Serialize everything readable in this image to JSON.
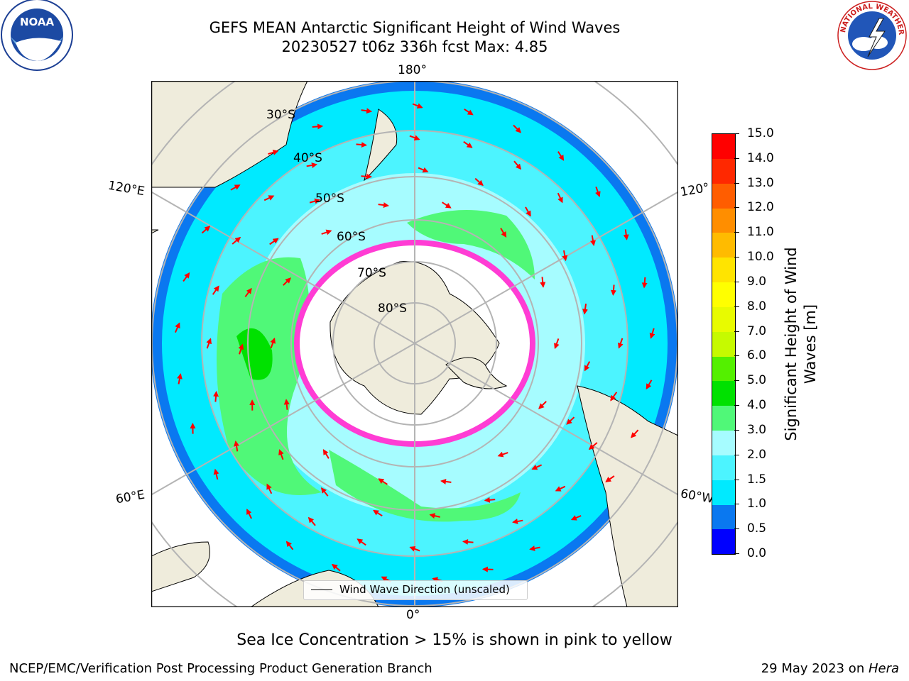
{
  "title": {
    "line1": "GEFS MEAN Antarctic Significant Height of Wind Waves",
    "line2": "20230527 t06z 336h fcst   Max: 4.85"
  },
  "map": {
    "projection": "south-polar-stereographic",
    "longitude_labels": {
      "top": "180°",
      "bottom": "0°",
      "upper_left": "120°E",
      "lower_left": "60°E",
      "upper_right": "120°",
      "lower_right": "60°W"
    },
    "latitude_labels": [
      "30°S",
      "40°S",
      "50°S",
      "60°S",
      "70°S",
      "80°S"
    ],
    "legend_label": "Wind Wave Direction (unscaled)",
    "colors": {
      "land": "#efecdc",
      "ice": "#ffffff",
      "ice_edge": "#ff3cd4",
      "arrow": "#ff0000",
      "grid": "#b4b4b4"
    }
  },
  "colorbar": {
    "label": "Significant Height of Wind Waves [m]",
    "ticks": [
      "0.0",
      "0.5",
      "1.0",
      "1.5",
      "2.0",
      "3.0",
      "4.0",
      "5.0",
      "6.0",
      "7.0",
      "8.0",
      "9.0",
      "10.0",
      "11.0",
      "12.0",
      "13.0",
      "14.0",
      "15.0"
    ],
    "colors": [
      "#0000ff",
      "#0a78f0",
      "#00eaff",
      "#4cf4ff",
      "#a6fcff",
      "#50f878",
      "#00e100",
      "#54f000",
      "#c6fa00",
      "#e8fb00",
      "#ffff00",
      "#ffe400",
      "#ffbb00",
      "#ff8e00",
      "#ff5d00",
      "#ff2800",
      "#ff0000"
    ]
  },
  "note": "Sea Ice Concentration > 15% is shown in pink to yellow",
  "footer": {
    "left": "NCEP/EMC/Verification Post Processing Product Generation Branch",
    "right_prefix": "29 May 2023 on ",
    "right_machine": "Hera"
  }
}
